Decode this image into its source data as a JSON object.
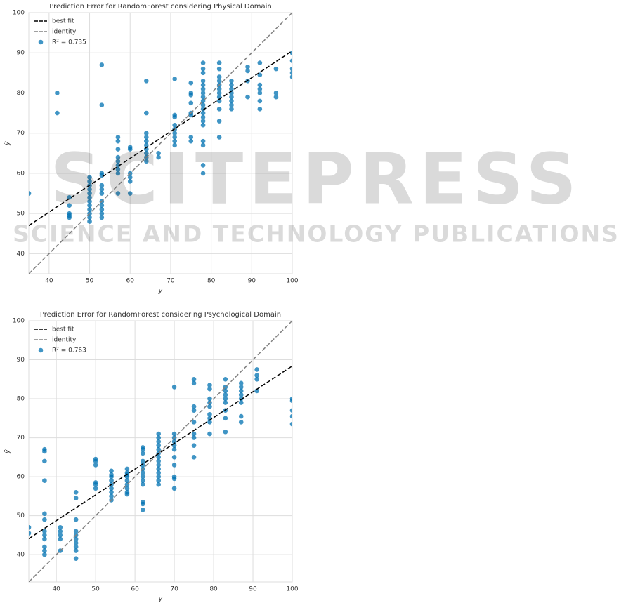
{
  "chart_data": [
    {
      "type": "scatter",
      "title": "Prediction Error for RandomForest considering Physical Domain",
      "x_label": "y",
      "y_label": "ŷ",
      "xlim": [
        35,
        100
      ],
      "ylim": [
        35,
        100
      ],
      "xticks": [
        40,
        50,
        60,
        70,
        80,
        90,
        100
      ],
      "yticks": [
        40,
        50,
        60,
        70,
        80,
        90,
        100
      ],
      "grid": true,
      "legend": "upper-left",
      "best_fit": {
        "name": "best fit",
        "color": "#000000",
        "x": [
          35,
          100
        ],
        "y": [
          47,
          90.5
        ]
      },
      "identity": {
        "name": "identity",
        "color": "#808080"
      },
      "series": [
        {
          "name": "R² = 0.735",
          "color": "#0072b2",
          "x": [
            35,
            42,
            42,
            45,
            45,
            45,
            45,
            45,
            50,
            50,
            50,
            50,
            50,
            50,
            50,
            50,
            50,
            50,
            50,
            50,
            53,
            53,
            53,
            53,
            53,
            53,
            53,
            53,
            53,
            53,
            53,
            53,
            57,
            57,
            57,
            57,
            57,
            57,
            57,
            57,
            57,
            60,
            60,
            60,
            60,
            60,
            60,
            64,
            64,
            64,
            64,
            64,
            64,
            64,
            64,
            64,
            64,
            67,
            67,
            71,
            71,
            71,
            71,
            71,
            71,
            71,
            71,
            71,
            75,
            75,
            75,
            75,
            75,
            75,
            75,
            75,
            78,
            78,
            78,
            78,
            78,
            78,
            78,
            78,
            78,
            78,
            78,
            78,
            78,
            78,
            78,
            78,
            78,
            78,
            78,
            82,
            82,
            82,
            82,
            82,
            82,
            82,
            82,
            82,
            82,
            82,
            82,
            85,
            85,
            85,
            85,
            85,
            85,
            85,
            85,
            89,
            89,
            89,
            89,
            92,
            92,
            92,
            92,
            92,
            92,
            92,
            96,
            96,
            96,
            100,
            100,
            100,
            100,
            100
          ],
          "values": [
            55,
            80,
            75,
            54,
            52,
            50,
            49,
            49.5,
            59,
            58,
            57,
            56,
            55,
            54,
            53,
            52,
            51,
            50,
            49,
            48,
            87,
            77,
            60,
            59.5,
            57,
            56,
            55,
            53,
            52,
            51,
            50,
            49,
            69,
            68,
            66,
            64,
            63,
            62,
            61,
            60,
            55,
            66.5,
            66,
            60,
            59,
            58,
            55,
            83,
            75,
            70,
            69,
            68,
            67,
            66,
            65,
            64,
            63,
            65,
            64,
            83.5,
            74.5,
            74,
            72,
            71,
            70,
            69,
            68,
            67,
            82.5,
            80,
            79.5,
            77.5,
            75,
            74.5,
            69,
            68,
            87.5,
            86,
            85,
            83,
            82,
            81,
            80,
            79,
            78,
            77,
            76,
            75,
            74,
            73,
            72,
            68,
            67,
            62,
            60,
            87.5,
            86,
            84,
            83,
            82,
            81,
            80,
            79,
            78,
            76,
            73,
            69,
            83,
            82,
            81,
            80,
            79,
            78,
            77,
            76,
            86.5,
            85.5,
            83,
            79,
            87.5,
            84.5,
            82,
            81,
            80,
            78,
            76,
            86,
            80,
            79,
            90,
            88,
            86,
            85,
            84
          ]
        }
      ]
    },
    {
      "type": "scatter",
      "title": "Prediction Error for RandomForest considering Psychological Domain",
      "x_label": "y",
      "y_label": "ŷ",
      "xlim": [
        33,
        100
      ],
      "ylim": [
        33,
        100
      ],
      "xticks": [
        40,
        50,
        60,
        70,
        80,
        90,
        100
      ],
      "yticks": [
        40,
        50,
        60,
        70,
        80,
        90,
        100
      ],
      "grid": true,
      "legend": "upper-left",
      "best_fit": {
        "name": "best fit",
        "color": "#000000",
        "x": [
          33,
          100
        ],
        "y": [
          44.1,
          88.4
        ]
      },
      "identity": {
        "name": "identity",
        "color": "#808080"
      },
      "series": [
        {
          "name": "R² = 0.763",
          "color": "#0072b2",
          "x": [
            33,
            33,
            37,
            37,
            37,
            37,
            37,
            37,
            37,
            37,
            37,
            37,
            37,
            37,
            41,
            41,
            41,
            41,
            41,
            45,
            45,
            45,
            45,
            45,
            45,
            45,
            45,
            45,
            45,
            50,
            50,
            50,
            50,
            50,
            50,
            54,
            54,
            54,
            54,
            54,
            54,
            54,
            54,
            54,
            58,
            58,
            58,
            58,
            58,
            58,
            58,
            58,
            58,
            62,
            62,
            62,
            62,
            62,
            62,
            62,
            62,
            62,
            62,
            62,
            62,
            62,
            66,
            66,
            66,
            66,
            66,
            66,
            66,
            66,
            66,
            66,
            66,
            66,
            66,
            66,
            70,
            70,
            70,
            70,
            70,
            70,
            70,
            70,
            70,
            70,
            70,
            75,
            75,
            75,
            75,
            75,
            75,
            75,
            75,
            75,
            79,
            79,
            79,
            79,
            79,
            79,
            79,
            79,
            79,
            83,
            83,
            83,
            83,
            83,
            83,
            83,
            83,
            83,
            87,
            87,
            87,
            87,
            87,
            87,
            87,
            87,
            91,
            91,
            91,
            91,
            100,
            100,
            100,
            100,
            100
          ],
          "values": [
            47,
            45.5,
            67,
            66.5,
            64,
            59,
            50.5,
            49,
            46,
            45,
            44,
            42,
            41,
            40,
            47,
            46,
            45,
            44,
            41,
            56,
            54.5,
            49,
            46,
            45,
            44,
            43,
            42,
            41,
            39,
            64.5,
            64,
            63,
            58.5,
            58,
            57,
            61.5,
            60.5,
            60,
            59,
            58,
            57,
            56,
            55,
            54,
            62,
            61,
            60.5,
            60,
            59,
            58,
            57,
            56,
            55.5,
            67.5,
            67,
            66,
            64,
            63,
            62,
            61,
            60,
            59,
            58,
            53.5,
            53,
            51.5,
            71,
            70,
            69,
            68,
            67,
            66,
            65,
            64,
            63,
            62,
            61,
            60,
            59,
            58,
            83,
            71,
            70,
            69,
            68,
            67,
            65,
            63,
            60,
            59.5,
            57,
            85,
            84,
            78,
            77,
            74,
            71,
            70,
            68,
            65,
            83.5,
            82.5,
            80,
            79,
            78,
            76,
            75,
            74,
            71,
            85,
            83,
            82,
            81,
            80,
            79,
            77,
            75,
            71.5,
            84,
            83,
            82,
            81,
            80,
            79,
            75.5,
            74,
            87.5,
            86,
            85,
            82,
            80,
            79.5,
            77,
            75.5,
            73.5
          ]
        }
      ]
    }
  ],
  "watermark": {
    "title": "SCITEPRESS",
    "subtitle": "SCIENCE AND TECHNOLOGY PUBLICATIONS"
  }
}
